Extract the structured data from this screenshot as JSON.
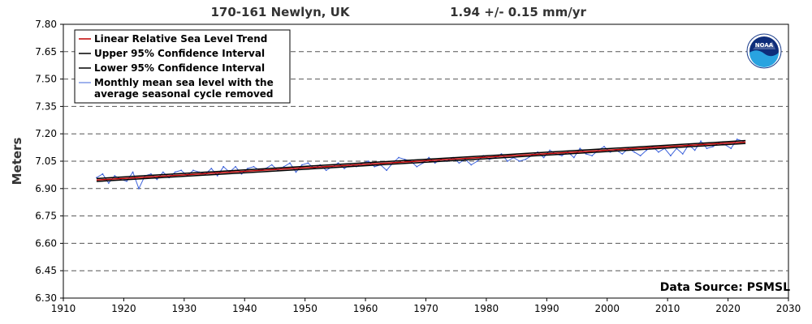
{
  "header": {
    "station": "170-161 Newlyn, UK",
    "trend": "1.94 +/-  0.15 mm/yr"
  },
  "source_label": "Data Source: PSMSL",
  "logo": {
    "icon": "noaa-logo",
    "text": "NOAA"
  },
  "colors": {
    "trend": "#c00000",
    "confidence": "#000000",
    "monthly": "#3f64db",
    "grid": "#555555"
  },
  "chart_data": {
    "type": "line",
    "title": "",
    "xlabel": "",
    "ylabel": "Meters",
    "xlim": [
      1910,
      2030
    ],
    "ylim": [
      6.3,
      7.8
    ],
    "xticks": [
      1910,
      1920,
      1930,
      1940,
      1950,
      1960,
      1970,
      1980,
      1990,
      2000,
      2010,
      2020,
      2030
    ],
    "xtick_labels": [
      "1910",
      "1920",
      "1930",
      "1940",
      "1950",
      "1960",
      "1970",
      "1980",
      "1990",
      "2000",
      "2010",
      "2020",
      "2030"
    ],
    "yticks": [
      6.3,
      6.45,
      6.6,
      6.75,
      6.9,
      7.05,
      7.2,
      7.35,
      7.5,
      7.65,
      7.8
    ],
    "ytick_labels": [
      "6.30",
      "6.45",
      "6.60",
      "6.75",
      "6.90",
      "7.05",
      "7.20",
      "7.35",
      "7.50",
      "7.65",
      "7.80"
    ],
    "grid": "horizontal dashed",
    "legend_position": "top-left",
    "legend": [
      {
        "label": "Linear Relative Sea Level Trend",
        "color": "#c00000"
      },
      {
        "label": "Upper 95% Confidence Interval",
        "color": "#000000"
      },
      {
        "label": "Lower 95% Confidence Interval",
        "color": "#000000"
      },
      {
        "label": "Monthly mean sea level with the",
        "label2": "average seasonal cycle removed",
        "color": "#3f64db"
      }
    ],
    "series": [
      {
        "name": "Linear Relative Sea Level Trend",
        "x": [
          1915.5,
          2022.9
        ],
        "y": [
          6.947,
          7.155
        ]
      },
      {
        "name": "Upper 95% Confidence Interval",
        "x": [
          1915.5,
          2022.9
        ],
        "y": [
          6.955,
          7.163
        ]
      },
      {
        "name": "Lower 95% Confidence Interval",
        "x": [
          1915.5,
          2022.9
        ],
        "y": [
          6.939,
          7.147
        ]
      },
      {
        "name": "Monthly mean sea level with the average seasonal cycle removed",
        "x": [
          1915.5,
          1916.5,
          1917.5,
          1918.5,
          1919.5,
          1920.5,
          1921.5,
          1922.5,
          1923.5,
          1924.5,
          1925.5,
          1926.5,
          1927.5,
          1928.5,
          1929.5,
          1930.5,
          1931.5,
          1932.5,
          1933.5,
          1934.5,
          1935.5,
          1936.5,
          1937.5,
          1938.5,
          1939.5,
          1940.5,
          1941.5,
          1942.5,
          1943.5,
          1944.5,
          1945.5,
          1946.5,
          1947.5,
          1948.5,
          1949.5,
          1950.5,
          1951.5,
          1952.5,
          1953.5,
          1954.5,
          1955.5,
          1956.5,
          1957.5,
          1958.5,
          1959.5,
          1960.5,
          1961.5,
          1962.5,
          1963.5,
          1964.5,
          1965.5,
          1966.5,
          1967.5,
          1968.5,
          1969.5,
          1970.5,
          1971.5,
          1972.5,
          1973.5,
          1974.5,
          1975.5,
          1976.5,
          1977.5,
          1978.5,
          1979.5,
          1980.5,
          1981.5,
          1982.5,
          1983.5,
          1984.5,
          1985.5,
          1986.5,
          1987.5,
          1988.5,
          1989.5,
          1990.5,
          1991.5,
          1992.5,
          1993.5,
          1994.5,
          1995.5,
          1996.5,
          1997.5,
          1998.5,
          1999.5,
          2000.5,
          2001.5,
          2002.5,
          2003.5,
          2004.5,
          2005.5,
          2006.5,
          2007.5,
          2008.5,
          2009.5,
          2010.5,
          2011.5,
          2012.5,
          2013.5,
          2014.5,
          2015.5,
          2016.5,
          2017.5,
          2018.5,
          2019.5,
          2020.5,
          2021.5,
          2022.5
        ],
        "y": [
          6.96,
          6.98,
          6.93,
          6.97,
          6.95,
          6.94,
          6.99,
          6.9,
          6.97,
          6.98,
          6.95,
          6.99,
          6.96,
          6.99,
          7.0,
          6.97,
          7.0,
          6.99,
          6.98,
          7.01,
          6.97,
          7.02,
          6.99,
          7.02,
          6.98,
          7.01,
          7.02,
          7.0,
          7.01,
          7.03,
          7.0,
          7.02,
          7.04,
          6.99,
          7.03,
          7.04,
          7.01,
          7.03,
          7.0,
          7.02,
          7.04,
          7.01,
          7.03,
          7.02,
          7.04,
          7.05,
          7.02,
          7.03,
          7.0,
          7.04,
          7.07,
          7.06,
          7.05,
          7.02,
          7.04,
          7.07,
          7.04,
          7.06,
          7.05,
          7.07,
          7.04,
          7.06,
          7.03,
          7.05,
          7.08,
          7.06,
          7.07,
          7.09,
          7.05,
          7.07,
          7.05,
          7.06,
          7.08,
          7.1,
          7.07,
          7.11,
          7.09,
          7.08,
          7.1,
          7.07,
          7.12,
          7.09,
          7.08,
          7.11,
          7.13,
          7.1,
          7.11,
          7.09,
          7.12,
          7.1,
          7.08,
          7.11,
          7.13,
          7.1,
          7.12,
          7.08,
          7.12,
          7.09,
          7.14,
          7.11,
          7.16,
          7.12,
          7.13,
          7.15,
          7.14,
          7.12,
          7.17,
          7.16
        ]
      }
    ]
  }
}
